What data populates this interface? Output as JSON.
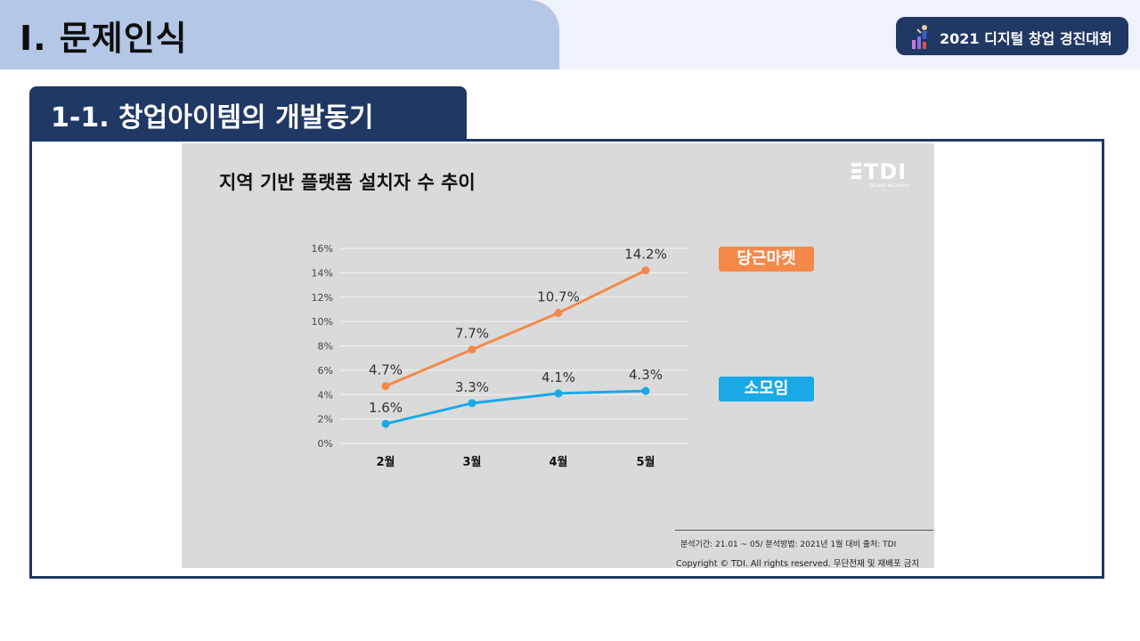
{
  "header": {
    "section_title": "Ⅰ. 문제인식",
    "badge_text": "2021 디지털 창업 경진대회"
  },
  "subheader": {
    "title": "1-1. 창업아이템의 개발동기"
  },
  "chart_panel": {
    "logo": "TDI",
    "logo_sub": "THE DATA INCUBATOR",
    "footnote_period": "분석기간: 21.01 ~ 05/ 분석방법: 2021년 1월 대비      출처: TDI",
    "copyright": "Copyright © TDI. All rights reserved. 무단전재 및 재배포 금지"
  },
  "colors": {
    "dark_navy": "#1f3864",
    "light_blue": "#b4c7e7",
    "orange_series": "#f4894a",
    "blue_series": "#19a9e6"
  },
  "chart_data": {
    "type": "line",
    "title": "지역 기반 플랫폼 설치자 수 추이",
    "categories": [
      "2월",
      "3월",
      "4월",
      "5월"
    ],
    "ylim": [
      0,
      16
    ],
    "yticks": [
      "0%",
      "2%",
      "4%",
      "6%",
      "8%",
      "10%",
      "12%",
      "14%",
      "16%"
    ],
    "grid": true,
    "legend_placement": "right",
    "series": [
      {
        "name": "당근마켓",
        "color": "#f4894a",
        "values": [
          4.7,
          7.7,
          10.7,
          14.2
        ],
        "labels": [
          "4.7%",
          "7.7%",
          "10.7%",
          "14.2%"
        ]
      },
      {
        "name": "소모임",
        "color": "#19a9e6",
        "values": [
          1.6,
          3.3,
          4.1,
          4.3
        ],
        "labels": [
          "1.6%",
          "3.3%",
          "4.1%",
          "4.3%"
        ]
      }
    ]
  }
}
